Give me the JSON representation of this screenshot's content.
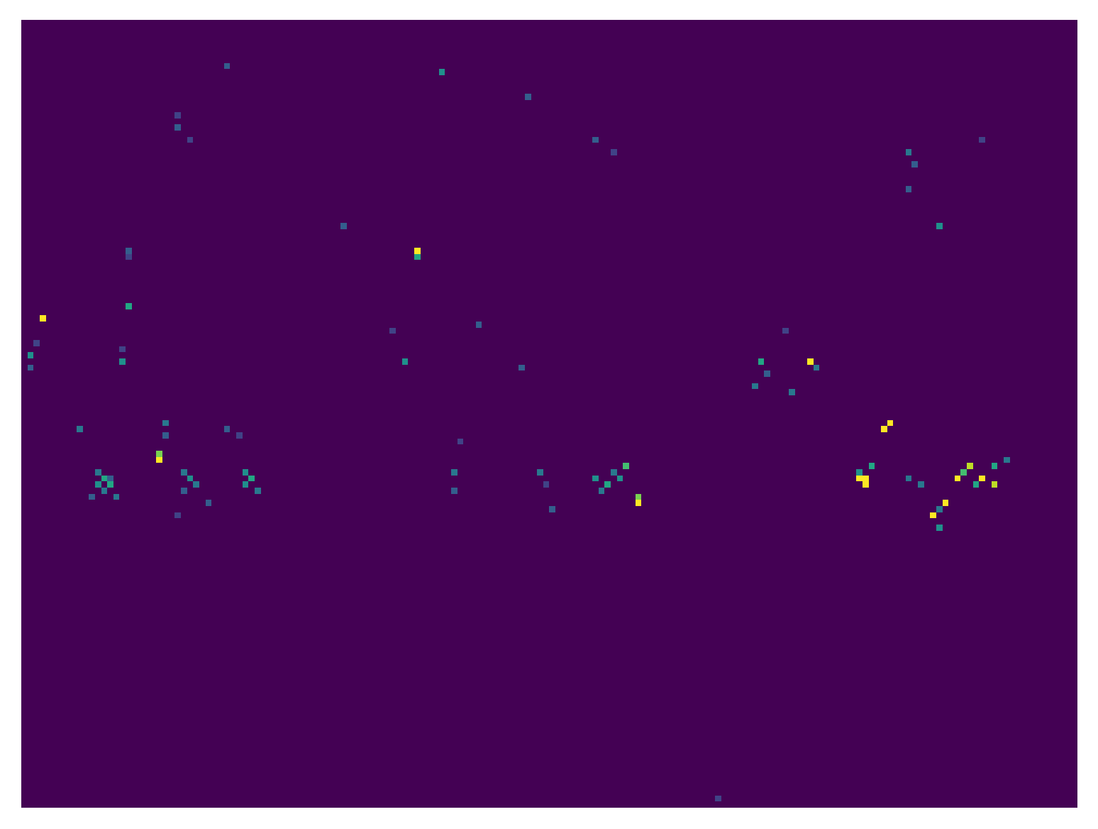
{
  "chart_data": {
    "type": "heatmap",
    "color": "viridis",
    "tick_labels": false,
    "rows": 128,
    "columns": 172,
    "value_range": [
      0,
      1
    ],
    "cells": [
      [
        48,
        3,
        1.0
      ],
      [
        54,
        1,
        0.5
      ],
      [
        56,
        1,
        0.3
      ],
      [
        52,
        2,
        0.2
      ],
      [
        66,
        9,
        0.4
      ],
      [
        73,
        12,
        0.4
      ],
      [
        74,
        13,
        0.6
      ],
      [
        75,
        12,
        0.5
      ],
      [
        75,
        14,
        0.6
      ],
      [
        76,
        13,
        0.4
      ],
      [
        77,
        11,
        0.3
      ],
      [
        77,
        15,
        0.4
      ],
      [
        74,
        14,
        0.3
      ],
      [
        46,
        17,
        0.6
      ],
      [
        55,
        16,
        0.5
      ],
      [
        37,
        17,
        0.3
      ],
      [
        38,
        17,
        0.2
      ],
      [
        53,
        16,
        0.2
      ],
      [
        71,
        22,
        1.0
      ],
      [
        70,
        22,
        0.8
      ],
      [
        65,
        23,
        0.4
      ],
      [
        67,
        23,
        0.3
      ],
      [
        73,
        26,
        0.4
      ],
      [
        74,
        27,
        0.5
      ],
      [
        75,
        28,
        0.4
      ],
      [
        76,
        26,
        0.3
      ],
      [
        78,
        30,
        0.3
      ],
      [
        80,
        25,
        0.2
      ],
      [
        17,
        25,
        0.3
      ],
      [
        15,
        25,
        0.2
      ],
      [
        19,
        27,
        0.2
      ],
      [
        7,
        33,
        0.3
      ],
      [
        73,
        36,
        0.5
      ],
      [
        74,
        37,
        0.6
      ],
      [
        75,
        36,
        0.5
      ],
      [
        76,
        38,
        0.4
      ],
      [
        66,
        33,
        0.3
      ],
      [
        67,
        35,
        0.2
      ],
      [
        37,
        64,
        1.0
      ],
      [
        38,
        64,
        0.6
      ],
      [
        8,
        68,
        0.5
      ],
      [
        55,
        62,
        0.5
      ],
      [
        50,
        60,
        0.2
      ],
      [
        33,
        52,
        0.3
      ],
      [
        49,
        74,
        0.3
      ],
      [
        56,
        81,
        0.3
      ],
      [
        73,
        70,
        0.4
      ],
      [
        76,
        70,
        0.3
      ],
      [
        68,
        71,
        0.2
      ],
      [
        73,
        84,
        0.4
      ],
      [
        79,
        86,
        0.3
      ],
      [
        75,
        85,
        0.2
      ],
      [
        74,
        93,
        0.5
      ],
      [
        75,
        95,
        0.6
      ],
      [
        72,
        98,
        0.7
      ],
      [
        74,
        97,
        0.5
      ],
      [
        77,
        100,
        0.8
      ],
      [
        78,
        100,
        1.0
      ],
      [
        76,
        94,
        0.4
      ],
      [
        73,
        96,
        0.4
      ],
      [
        19,
        93,
        0.3
      ],
      [
        12,
        82,
        0.3
      ],
      [
        21,
        96,
        0.2
      ],
      [
        55,
        120,
        0.6
      ],
      [
        55,
        128,
        1.0
      ],
      [
        56,
        129,
        0.4
      ],
      [
        60,
        125,
        0.4
      ],
      [
        59,
        119,
        0.4
      ],
      [
        57,
        121,
        0.3
      ],
      [
        50,
        124,
        0.2
      ],
      [
        66,
        140,
        1.0
      ],
      [
        65,
        141,
        1.0
      ],
      [
        74,
        136,
        1.0
      ],
      [
        74,
        137,
        1.0
      ],
      [
        75,
        137,
        1.0
      ],
      [
        72,
        138,
        0.6
      ],
      [
        73,
        136,
        0.5
      ],
      [
        74,
        144,
        0.4
      ],
      [
        75,
        146,
        0.4
      ],
      [
        80,
        148,
        1.0
      ],
      [
        78,
        150,
        1.0
      ],
      [
        82,
        149,
        0.5
      ],
      [
        79,
        149,
        0.4
      ],
      [
        74,
        152,
        1.0
      ],
      [
        72,
        154,
        0.9
      ],
      [
        74,
        156,
        1.0
      ],
      [
        75,
        158,
        0.9
      ],
      [
        72,
        158,
        0.6
      ],
      [
        71,
        160,
        0.4
      ],
      [
        73,
        153,
        0.7
      ],
      [
        75,
        155,
        0.6
      ],
      [
        33,
        149,
        0.5
      ],
      [
        21,
        144,
        0.4
      ],
      [
        27,
        144,
        0.3
      ],
      [
        23,
        145,
        0.3
      ],
      [
        19,
        156,
        0.2
      ],
      [
        126,
        113,
        0.2
      ]
    ]
  }
}
